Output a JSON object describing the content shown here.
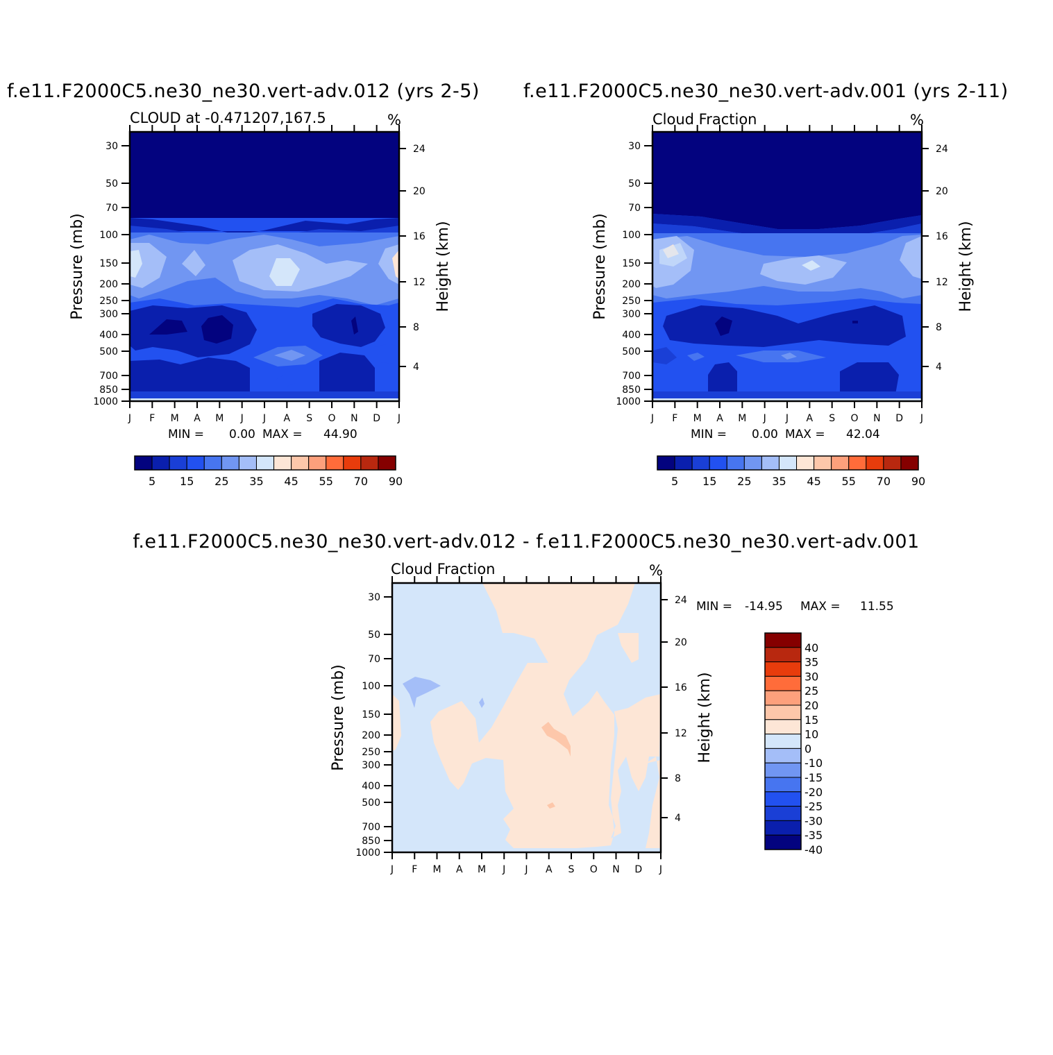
{
  "chart_data": [
    {
      "type": "heatmap",
      "title": "f.e11.F2000C5.ne30_ne30.vert-adv.012 (yrs 2-5)",
      "subtitle": "CLOUD at -0.471207,167.5",
      "units": "%",
      "xlabel": "",
      "ylabel": "Pressure (mb)",
      "ylabel_right": "Height (km)",
      "x_ticks": [
        "J",
        "F",
        "M",
        "A",
        "M",
        "J",
        "J",
        "A",
        "S",
        "O",
        "N",
        "D",
        "J"
      ],
      "y_ticks": [
        "30",
        "50",
        "70",
        "100",
        "150",
        "200",
        "250",
        "300",
        "400",
        "500",
        "700",
        "850",
        "1000"
      ],
      "y_ticks_right": [
        "24",
        "20",
        "16",
        "12",
        "8",
        "4"
      ],
      "min_label": "MIN =",
      "min_value": "0.00",
      "max_label": "MAX =",
      "max_value": "44.90",
      "colorbar_labels": [
        "5",
        "15",
        "25",
        "35",
        "45",
        "55",
        "70",
        "90"
      ],
      "colorbar_colors": [
        "#03037f",
        "#0a1fad",
        "#1a3fd6",
        "#2251f0",
        "#4775f0",
        "#7196f2",
        "#a4bef8",
        "#d4e6fa",
        "#fde6d6",
        "#fdc7aa",
        "#fda07c",
        "#ff6c3a",
        "#e83c0c",
        "#b8280f",
        "#850000"
      ]
    },
    {
      "type": "heatmap",
      "title": "f.e11.F2000C5.ne30_ne30.vert-adv.001 (yrs 2-11)",
      "subtitle": "Cloud Fraction",
      "units": "%",
      "xlabel": "",
      "ylabel": "Pressure (mb)",
      "ylabel_right": "Height (km)",
      "x_ticks": [
        "J",
        "F",
        "M",
        "A",
        "M",
        "J",
        "J",
        "A",
        "S",
        "O",
        "N",
        "D",
        "J"
      ],
      "y_ticks": [
        "30",
        "50",
        "70",
        "100",
        "150",
        "200",
        "250",
        "300",
        "400",
        "500",
        "700",
        "850",
        "1000"
      ],
      "y_ticks_right": [
        "24",
        "20",
        "16",
        "12",
        "8",
        "4"
      ],
      "min_label": "MIN =",
      "min_value": "0.00",
      "max_label": "MAX =",
      "max_value": "42.04",
      "colorbar_labels": [
        "5",
        "15",
        "25",
        "35",
        "45",
        "55",
        "70",
        "90"
      ],
      "colorbar_colors": [
        "#03037f",
        "#0a1fad",
        "#1a3fd6",
        "#2251f0",
        "#4775f0",
        "#7196f2",
        "#a4bef8",
        "#d4e6fa",
        "#fde6d6",
        "#fdc7aa",
        "#fda07c",
        "#ff6c3a",
        "#e83c0c",
        "#b8280f",
        "#850000"
      ]
    },
    {
      "type": "heatmap",
      "title": "f.e11.F2000C5.ne30_ne30.vert-adv.012 - f.e11.F2000C5.ne30_ne30.vert-adv.001",
      "subtitle": "Cloud Fraction",
      "units": "%",
      "xlabel": "",
      "ylabel": "Pressure (mb)",
      "ylabel_right": "Height (km)",
      "x_ticks": [
        "J",
        "F",
        "M",
        "A",
        "M",
        "J",
        "J",
        "A",
        "S",
        "O",
        "N",
        "D",
        "J"
      ],
      "y_ticks": [
        "30",
        "50",
        "70",
        "100",
        "150",
        "200",
        "250",
        "300",
        "400",
        "500",
        "700",
        "850",
        "1000"
      ],
      "y_ticks_right": [
        "24",
        "20",
        "16",
        "12",
        "8",
        "4"
      ],
      "min_label": "MIN =",
      "min_value": "-14.95",
      "max_label": "MAX =",
      "max_value": "11.55",
      "colorbar_labels": [
        "40",
        "35",
        "30",
        "25",
        "20",
        "15",
        "10",
        "0",
        "-10",
        "-15",
        "-20",
        "-25",
        "-30",
        "-35",
        "-40"
      ],
      "colorbar_colors": [
        "#850000",
        "#b8280f",
        "#e83c0c",
        "#ff6c3a",
        "#fda07c",
        "#fdc7aa",
        "#fde6d6",
        "#d4e6fa",
        "#a4bef8",
        "#7196f2",
        "#4775f0",
        "#2251f0",
        "#1a3fd6",
        "#0a1fad",
        "#03037f"
      ]
    }
  ]
}
